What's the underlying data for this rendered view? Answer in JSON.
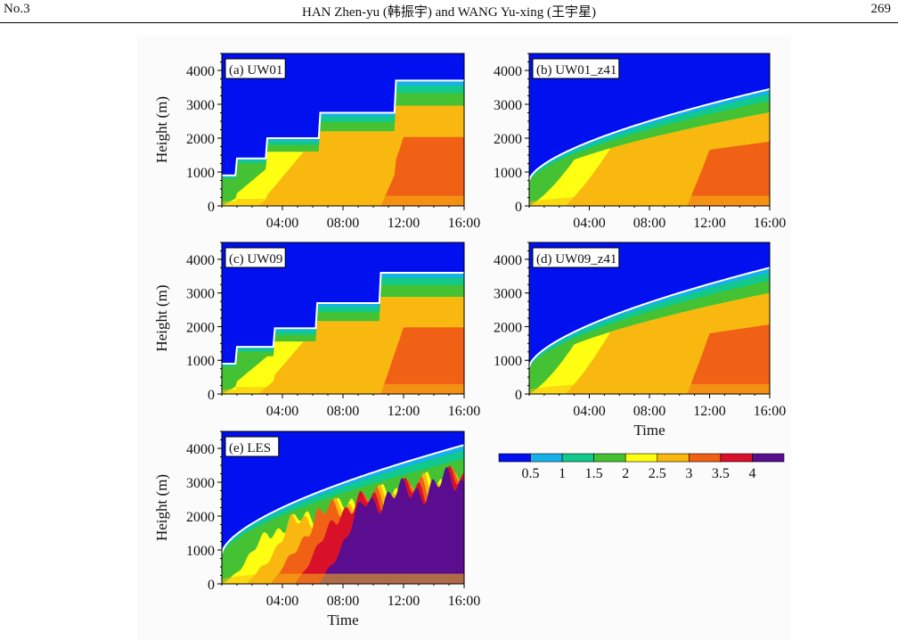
{
  "header": {
    "left": "No.3",
    "center": "HAN Zhen-yu (韩振宇) and WANG Yu-xing (王宇星)",
    "right": "269"
  },
  "chart_data": {
    "type": "heatmap",
    "quantity_levels": [
      0.5,
      1,
      1.5,
      2,
      2.5,
      3,
      3.5,
      4
    ],
    "colorbar": {
      "colors": [
        "#0010ee",
        "#17b1ea",
        "#10c98a",
        "#45c233",
        "#ffff12",
        "#f8b810",
        "#f06015",
        "#d8102a",
        "#5a0e8f"
      ],
      "tick_labels": [
        "0.5",
        "1",
        "1.5",
        "2",
        "2.5",
        "3",
        "3.5",
        "4"
      ]
    },
    "ylabel": "Height (m)",
    "xlabel": "Time",
    "yticks": [
      "0",
      "1000",
      "2000",
      "3000",
      "4000"
    ],
    "xticks": [
      "04:00",
      "08:00",
      "12:00",
      "16:00"
    ],
    "ylim": [
      0,
      4500
    ],
    "xlim_hours": [
      0,
      16
    ],
    "panels": [
      {
        "label": "(a) UW01",
        "pbl_top_type": "step",
        "step_hours": [
          0,
          1,
          3,
          6.5,
          11.5
        ],
        "top_heights_m": [
          900,
          1400,
          2000,
          2750,
          3700
        ],
        "show_xlabel": false
      },
      {
        "label": "(b) UW01_z41",
        "pbl_top_type": "smooth",
        "top_start_m": 750,
        "top_end_m": 3450,
        "show_xlabel": false
      },
      {
        "label": "(c) UW09",
        "pbl_top_type": "step",
        "step_hours": [
          0,
          1,
          3.5,
          6.3,
          10.5
        ],
        "top_heights_m": [
          900,
          1400,
          1950,
          2700,
          3600
        ],
        "show_xlabel": false
      },
      {
        "label": "(d) UW09_z41",
        "pbl_top_type": "smooth",
        "top_start_m": 800,
        "top_end_m": 3750,
        "show_xlabel": true
      },
      {
        "label": "(e) LES",
        "pbl_top_type": "smooth",
        "top_start_m": 900,
        "top_end_m": 4100,
        "show_xlabel": true
      }
    ]
  }
}
